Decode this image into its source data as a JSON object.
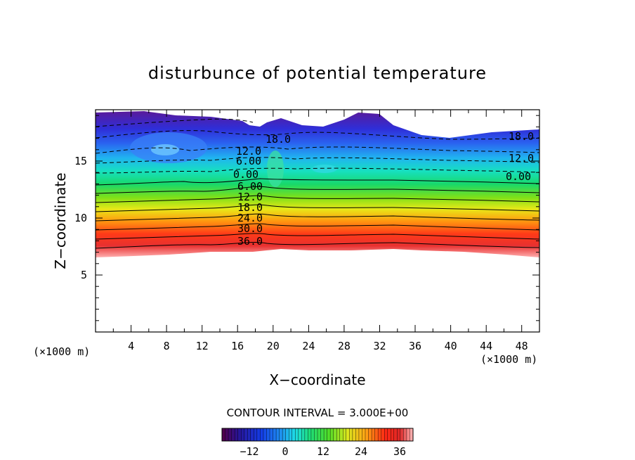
{
  "chart_data": {
    "type": "contour",
    "title": "disturbunce of potential temperature",
    "xlabel": "X−coordinate",
    "ylabel": "Z−coordinate",
    "x_unit": "(×1000 m)",
    "z_unit": "(×1000 m)",
    "xlim": [
      0,
      50
    ],
    "ylim": [
      0,
      19.5
    ],
    "x_ticks": [
      "4",
      "8",
      "12",
      "16",
      "20",
      "24",
      "28",
      "32",
      "36",
      "40",
      "44",
      "48"
    ],
    "y_ticks": [
      "5",
      "10",
      "15"
    ],
    "contour_interval_text": "CONTOUR INTERVAL = 3.000E+00",
    "contour_interval": 3.0,
    "data_lower_edge_z_approx": 7.0,
    "value_range": [
      -21,
      39
    ],
    "contour_labels": [
      {
        "text": "36.0",
        "x": 17.3,
        "z": 8.0
      },
      {
        "text": "30.0",
        "x": 17.3,
        "z": 9.3
      },
      {
        "text": "24.0",
        "x": 17.3,
        "z": 10.3
      },
      {
        "text": "18.0",
        "x": 17.3,
        "z": 11.2
      },
      {
        "text": "12.0",
        "x": 17.3,
        "z": 12.1
      },
      {
        "text": "6.00",
        "x": 17.3,
        "z": 13.0
      },
      {
        "text": "0.00",
        "x": 16.8,
        "z": 14.2
      },
      {
        "text": "6.00",
        "x": 17.3,
        "z": 15.1
      },
      {
        "text": "12.0",
        "x": 17.3,
        "z": 15.9
      },
      {
        "text": "18.0",
        "x": 20.3,
        "z": 17.1
      },
      {
        "text": "18.0",
        "x": 48.5,
        "z": 17.3
      },
      {
        "text": "12.0",
        "x": 48.5,
        "z": 15.5
      },
      {
        "text": "0.00",
        "x": 47.5,
        "z": 13.9
      }
    ],
    "colorbar": {
      "ticks": [
        "−12",
        "0",
        "12",
        "24",
        "36"
      ],
      "range": [
        -21,
        39
      ]
    }
  }
}
